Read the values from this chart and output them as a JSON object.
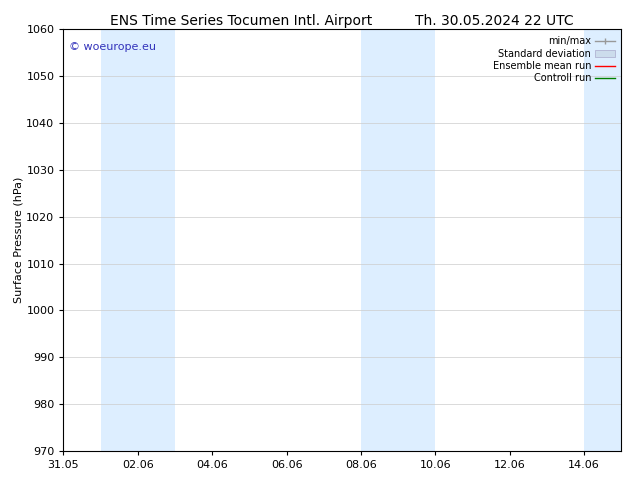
{
  "title_left": "ENS Time Series Tocumen Intl. Airport",
  "title_right": "Th. 30.05.2024 22 UTC",
  "ylabel": "Surface Pressure (hPa)",
  "ylim": [
    970,
    1060
  ],
  "yticks": [
    970,
    980,
    990,
    1000,
    1010,
    1020,
    1030,
    1040,
    1050,
    1060
  ],
  "xtick_labels": [
    "31.05",
    "02.06",
    "04.06",
    "06.06",
    "08.06",
    "10.06",
    "12.06",
    "14.06"
  ],
  "xtick_positions": [
    0,
    2,
    4,
    6,
    8,
    10,
    12,
    14
  ],
  "xlim": [
    0,
    15
  ],
  "shaded_bands": [
    {
      "x_start": 1.0,
      "x_end": 3.0,
      "color": "#ddeeff"
    },
    {
      "x_start": 8.0,
      "x_end": 10.0,
      "color": "#ddeeff"
    },
    {
      "x_start": 14.0,
      "x_end": 15.0,
      "color": "#ddeeff"
    }
  ],
  "watermark_text": "© woeurope.eu",
  "watermark_color": "#3333bb",
  "legend_entries": [
    {
      "label": "min/max",
      "color": "#aaaaaa",
      "style": "errorbar"
    },
    {
      "label": "Standard deviation",
      "color": "#ccdcec",
      "style": "box"
    },
    {
      "label": "Ensemble mean run",
      "color": "red",
      "style": "line"
    },
    {
      "label": "Controll run",
      "color": "green",
      "style": "line"
    }
  ],
  "background_color": "#ffffff",
  "grid_color": "#cccccc",
  "title_fontsize": 10,
  "axis_label_fontsize": 8,
  "tick_fontsize": 8,
  "watermark_fontsize": 8
}
